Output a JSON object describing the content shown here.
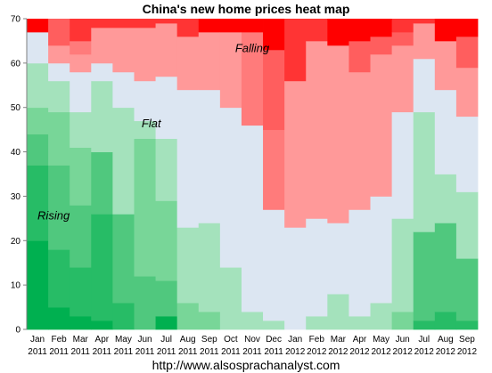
{
  "chart_data": {
    "type": "heatmap",
    "title": "China's new home prices heat map",
    "subtitle": "",
    "xlabel": "",
    "ylabel": "",
    "categories": [
      "Jan 2011",
      "Feb 2011",
      "Mar 2011",
      "Apr 2011",
      "May 2011",
      "Jun 2011",
      "Jul 2011",
      "Aug 2011",
      "Sep 2011",
      "Oct 2011",
      "Nov 2011",
      "Dec 2011",
      "Jan 2012",
      "Feb 2012",
      "Mar 2012",
      "Apr 2012",
      "May 2012",
      "Jun 2012",
      "Jul 2012",
      "Aug 2012",
      "Sep 2012"
    ],
    "tick_month_labels": [
      "Jan",
      "Feb",
      "Mar",
      "Apr",
      "May",
      "Jun",
      "Jul",
      "Aug",
      "Sep",
      "Oct",
      "Nov",
      "Dec",
      "Jan",
      "Feb",
      "Mar",
      "Apr",
      "May",
      "Jun",
      "Jul",
      "Aug",
      "Sep"
    ],
    "tick_year_labels": [
      "2011",
      "2011",
      "2011",
      "2011",
      "2011",
      "2011",
      "2011",
      "2011",
      "2011",
      "2011",
      "2011",
      "2011",
      "2012",
      "2012",
      "2012",
      "2012",
      "2012",
      "2012",
      "2012",
      "2012",
      "2012"
    ],
    "y_ticks": [
      0,
      10,
      20,
      30,
      40,
      50,
      60,
      70
    ],
    "ylim": [
      0,
      70
    ],
    "grid": false,
    "legend": "none",
    "annotations": {
      "rising": "Rising",
      "flat": "Flat",
      "falling": "Falling"
    },
    "source": "http://www.alsosprachanalyst.com",
    "color_scale": {
      "rising": [
        "#00b050",
        "#27bc66",
        "#50c87e",
        "#78d698",
        "#a4e2bc"
      ],
      "flat": "#dce6f2",
      "falling": [
        "#ff9999",
        "#ff7b7b",
        "#ff5e5e",
        "#ff3434",
        "#ff0000"
      ]
    },
    "series": [
      {
        "stack": [
          {
            "value": 20,
            "category": "rising",
            "level": 0
          },
          {
            "value": 17,
            "category": "rising",
            "level": 1
          },
          {
            "value": 7,
            "category": "rising",
            "level": 2
          },
          {
            "value": 6,
            "category": "rising",
            "level": 3
          },
          {
            "value": 10,
            "category": "rising",
            "level": 4
          },
          {
            "value": 7,
            "category": "flat",
            "level": 0
          },
          {
            "value": 0,
            "category": "falling",
            "level": 0
          },
          {
            "value": 3,
            "category": "falling",
            "level": 4
          }
        ]
      },
      {
        "stack": [
          {
            "value": 5,
            "category": "rising",
            "level": 0
          },
          {
            "value": 13,
            "category": "rising",
            "level": 1
          },
          {
            "value": 19,
            "category": "rising",
            "level": 2
          },
          {
            "value": 12,
            "category": "rising",
            "level": 3
          },
          {
            "value": 7,
            "category": "rising",
            "level": 4
          },
          {
            "value": 4,
            "category": "flat",
            "level": 0
          },
          {
            "value": 4,
            "category": "falling",
            "level": 0
          },
          {
            "value": 6,
            "category": "falling",
            "level": 2
          }
        ]
      },
      {
        "stack": [
          {
            "value": 3,
            "category": "rising",
            "level": 0
          },
          {
            "value": 11,
            "category": "rising",
            "level": 1
          },
          {
            "value": 14,
            "category": "rising",
            "level": 2
          },
          {
            "value": 13,
            "category": "rising",
            "level": 3
          },
          {
            "value": 8,
            "category": "rising",
            "level": 4
          },
          {
            "value": 9,
            "category": "flat",
            "level": 0
          },
          {
            "value": 4,
            "category": "falling",
            "level": 0
          },
          {
            "value": 3,
            "category": "falling",
            "level": 1
          },
          {
            "value": 5,
            "category": "falling",
            "level": 3
          }
        ]
      },
      {
        "stack": [
          {
            "value": 2,
            "category": "rising",
            "level": 0
          },
          {
            "value": 24,
            "category": "rising",
            "level": 1
          },
          {
            "value": 14,
            "category": "rising",
            "level": 2
          },
          {
            "value": 16,
            "category": "rising",
            "level": 4
          },
          {
            "value": 4,
            "category": "flat",
            "level": 0
          },
          {
            "value": 8,
            "category": "falling",
            "level": 0
          },
          {
            "value": 2,
            "category": "falling",
            "level": 3
          }
        ]
      },
      {
        "stack": [
          {
            "value": 6,
            "category": "rising",
            "level": 1
          },
          {
            "value": 20,
            "category": "rising",
            "level": 2
          },
          {
            "value": 24,
            "category": "rising",
            "level": 4
          },
          {
            "value": 8,
            "category": "flat",
            "level": 0
          },
          {
            "value": 10,
            "category": "falling",
            "level": 0
          },
          {
            "value": 2,
            "category": "falling",
            "level": 3
          }
        ]
      },
      {
        "stack": [
          {
            "value": 12,
            "category": "rising",
            "level": 2
          },
          {
            "value": 31,
            "category": "rising",
            "level": 3
          },
          {
            "value": 4,
            "category": "rising",
            "level": 4
          },
          {
            "value": 9,
            "category": "flat",
            "level": 0
          },
          {
            "value": 12,
            "category": "falling",
            "level": 0
          },
          {
            "value": 2,
            "category": "falling",
            "level": 3
          }
        ]
      },
      {
        "stack": [
          {
            "value": 3,
            "category": "rising",
            "level": 0
          },
          {
            "value": 8,
            "category": "rising",
            "level": 2
          },
          {
            "value": 18,
            "category": "rising",
            "level": 3
          },
          {
            "value": 14,
            "category": "rising",
            "level": 4
          },
          {
            "value": 14,
            "category": "flat",
            "level": 0
          },
          {
            "value": 12,
            "category": "falling",
            "level": 0
          },
          {
            "value": 1,
            "category": "falling",
            "level": 3
          }
        ]
      },
      {
        "stack": [
          {
            "value": 6,
            "category": "rising",
            "level": 3
          },
          {
            "value": 17,
            "category": "rising",
            "level": 4
          },
          {
            "value": 31,
            "category": "flat",
            "level": 0
          },
          {
            "value": 12,
            "category": "falling",
            "level": 0
          },
          {
            "value": 4,
            "category": "falling",
            "level": 3
          }
        ]
      },
      {
        "stack": [
          {
            "value": 4,
            "category": "rising",
            "level": 3
          },
          {
            "value": 20,
            "category": "rising",
            "level": 4
          },
          {
            "value": 30,
            "category": "flat",
            "level": 0
          },
          {
            "value": 13,
            "category": "falling",
            "level": 0
          },
          {
            "value": 3,
            "category": "falling",
            "level": 4
          }
        ]
      },
      {
        "stack": [
          {
            "value": 14,
            "category": "rising",
            "level": 4
          },
          {
            "value": 36,
            "category": "flat",
            "level": 0
          },
          {
            "value": 17,
            "category": "falling",
            "level": 0
          },
          {
            "value": 3,
            "category": "falling",
            "level": 4
          }
        ]
      },
      {
        "stack": [
          {
            "value": 4,
            "category": "rising",
            "level": 4
          },
          {
            "value": 42,
            "category": "flat",
            "level": 0
          },
          {
            "value": 21,
            "category": "falling",
            "level": 1
          },
          {
            "value": 3,
            "category": "falling",
            "level": 4
          }
        ]
      },
      {
        "stack": [
          {
            "value": 2,
            "category": "rising",
            "level": 4
          },
          {
            "value": 25,
            "category": "flat",
            "level": 0
          },
          {
            "value": 18,
            "category": "falling",
            "level": 1
          },
          {
            "value": 18,
            "category": "falling",
            "level": 2
          },
          {
            "value": 7,
            "category": "falling",
            "level": 4
          }
        ]
      },
      {
        "stack": [
          {
            "value": 23,
            "category": "flat",
            "level": 0
          },
          {
            "value": 33,
            "category": "falling",
            "level": 0
          },
          {
            "value": 14,
            "category": "falling",
            "level": 3
          }
        ]
      },
      {
        "stack": [
          {
            "value": 3,
            "category": "rising",
            "level": 4
          },
          {
            "value": 22,
            "category": "flat",
            "level": 0
          },
          {
            "value": 40,
            "category": "falling",
            "level": 0
          },
          {
            "value": 5,
            "category": "falling",
            "level": 3
          }
        ]
      },
      {
        "stack": [
          {
            "value": 8,
            "category": "rising",
            "level": 4
          },
          {
            "value": 16,
            "category": "flat",
            "level": 0
          },
          {
            "value": 40,
            "category": "falling",
            "level": 0
          },
          {
            "value": 6,
            "category": "falling",
            "level": 4
          }
        ]
      },
      {
        "stack": [
          {
            "value": 3,
            "category": "rising",
            "level": 4
          },
          {
            "value": 24,
            "category": "flat",
            "level": 0
          },
          {
            "value": 31,
            "category": "falling",
            "level": 0
          },
          {
            "value": 7,
            "category": "falling",
            "level": 2
          },
          {
            "value": 5,
            "category": "falling",
            "level": 4
          }
        ]
      },
      {
        "stack": [
          {
            "value": 6,
            "category": "rising",
            "level": 4
          },
          {
            "value": 24,
            "category": "flat",
            "level": 0
          },
          {
            "value": 32,
            "category": "falling",
            "level": 0
          },
          {
            "value": 4,
            "category": "falling",
            "level": 2
          },
          {
            "value": 4,
            "category": "falling",
            "level": 4
          }
        ]
      },
      {
        "stack": [
          {
            "value": 4,
            "category": "rising",
            "level": 3
          },
          {
            "value": 21,
            "category": "rising",
            "level": 4
          },
          {
            "value": 24,
            "category": "flat",
            "level": 0
          },
          {
            "value": 15,
            "category": "falling",
            "level": 0
          },
          {
            "value": 3,
            "category": "falling",
            "level": 2
          },
          {
            "value": 3,
            "category": "falling",
            "level": 3
          }
        ]
      },
      {
        "stack": [
          {
            "value": 2,
            "category": "rising",
            "level": 1
          },
          {
            "value": 20,
            "category": "rising",
            "level": 2
          },
          {
            "value": 27,
            "category": "rising",
            "level": 4
          },
          {
            "value": 12,
            "category": "flat",
            "level": 0
          },
          {
            "value": 8,
            "category": "falling",
            "level": 0
          },
          {
            "value": 1,
            "category": "falling",
            "level": 3
          }
        ]
      },
      {
        "stack": [
          {
            "value": 4,
            "category": "rising",
            "level": 1
          },
          {
            "value": 20,
            "category": "rising",
            "level": 2
          },
          {
            "value": 11,
            "category": "rising",
            "level": 4
          },
          {
            "value": 19,
            "category": "flat",
            "level": 0
          },
          {
            "value": 11,
            "category": "falling",
            "level": 0
          },
          {
            "value": 5,
            "category": "falling",
            "level": 4
          }
        ]
      },
      {
        "stack": [
          {
            "value": 2,
            "category": "rising",
            "level": 1
          },
          {
            "value": 14,
            "category": "rising",
            "level": 2
          },
          {
            "value": 15,
            "category": "rising",
            "level": 4
          },
          {
            "value": 17,
            "category": "flat",
            "level": 0
          },
          {
            "value": 11,
            "category": "falling",
            "level": 0
          },
          {
            "value": 7,
            "category": "falling",
            "level": 2
          },
          {
            "value": 4,
            "category": "falling",
            "level": 4
          }
        ]
      }
    ]
  }
}
